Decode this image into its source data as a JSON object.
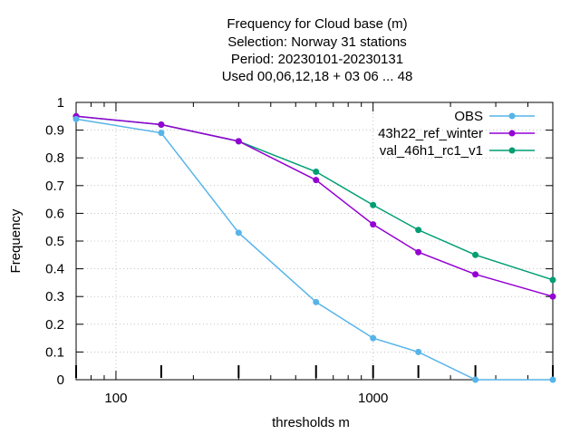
{
  "chart_data": {
    "type": "line",
    "title_lines": [
      "Frequency  for Cloud base (m)",
      "Selection: Norway     31 stations",
      "Period: 20230101-20230131",
      "Used  00,06,12,18  + 03 06 ... 48"
    ],
    "xlabel": "thresholds m",
    "ylabel": "Frequency",
    "x_scale": "log",
    "xlim": [
      70,
      5000
    ],
    "ylim": [
      0,
      1
    ],
    "x_tick_labels": [
      "100",
      "1000"
    ],
    "y_tick_labels": [
      "0",
      "0.1",
      "0.2",
      "0.3",
      "0.4",
      "0.5",
      "0.6",
      "0.7",
      "0.8",
      "0.9",
      "1"
    ],
    "grid": true,
    "legend_position": "top-right",
    "x": [
      70,
      150,
      300,
      600,
      1000,
      1500,
      2500,
      5000
    ],
    "series": [
      {
        "name": "OBS",
        "color": "#56b4e9",
        "values": [
          0.94,
          0.89,
          0.53,
          0.28,
          0.15,
          0.1,
          0.0,
          0.0
        ]
      },
      {
        "name": "43h22_ref_winter",
        "color": "#9400d3",
        "values": [
          0.95,
          0.92,
          0.86,
          0.72,
          0.56,
          0.46,
          0.38,
          0.3
        ]
      },
      {
        "name": "val_46h1_rc1_v1",
        "color": "#009e73",
        "values": [
          0.95,
          0.92,
          0.86,
          0.75,
          0.63,
          0.54,
          0.45,
          0.36
        ]
      }
    ]
  }
}
